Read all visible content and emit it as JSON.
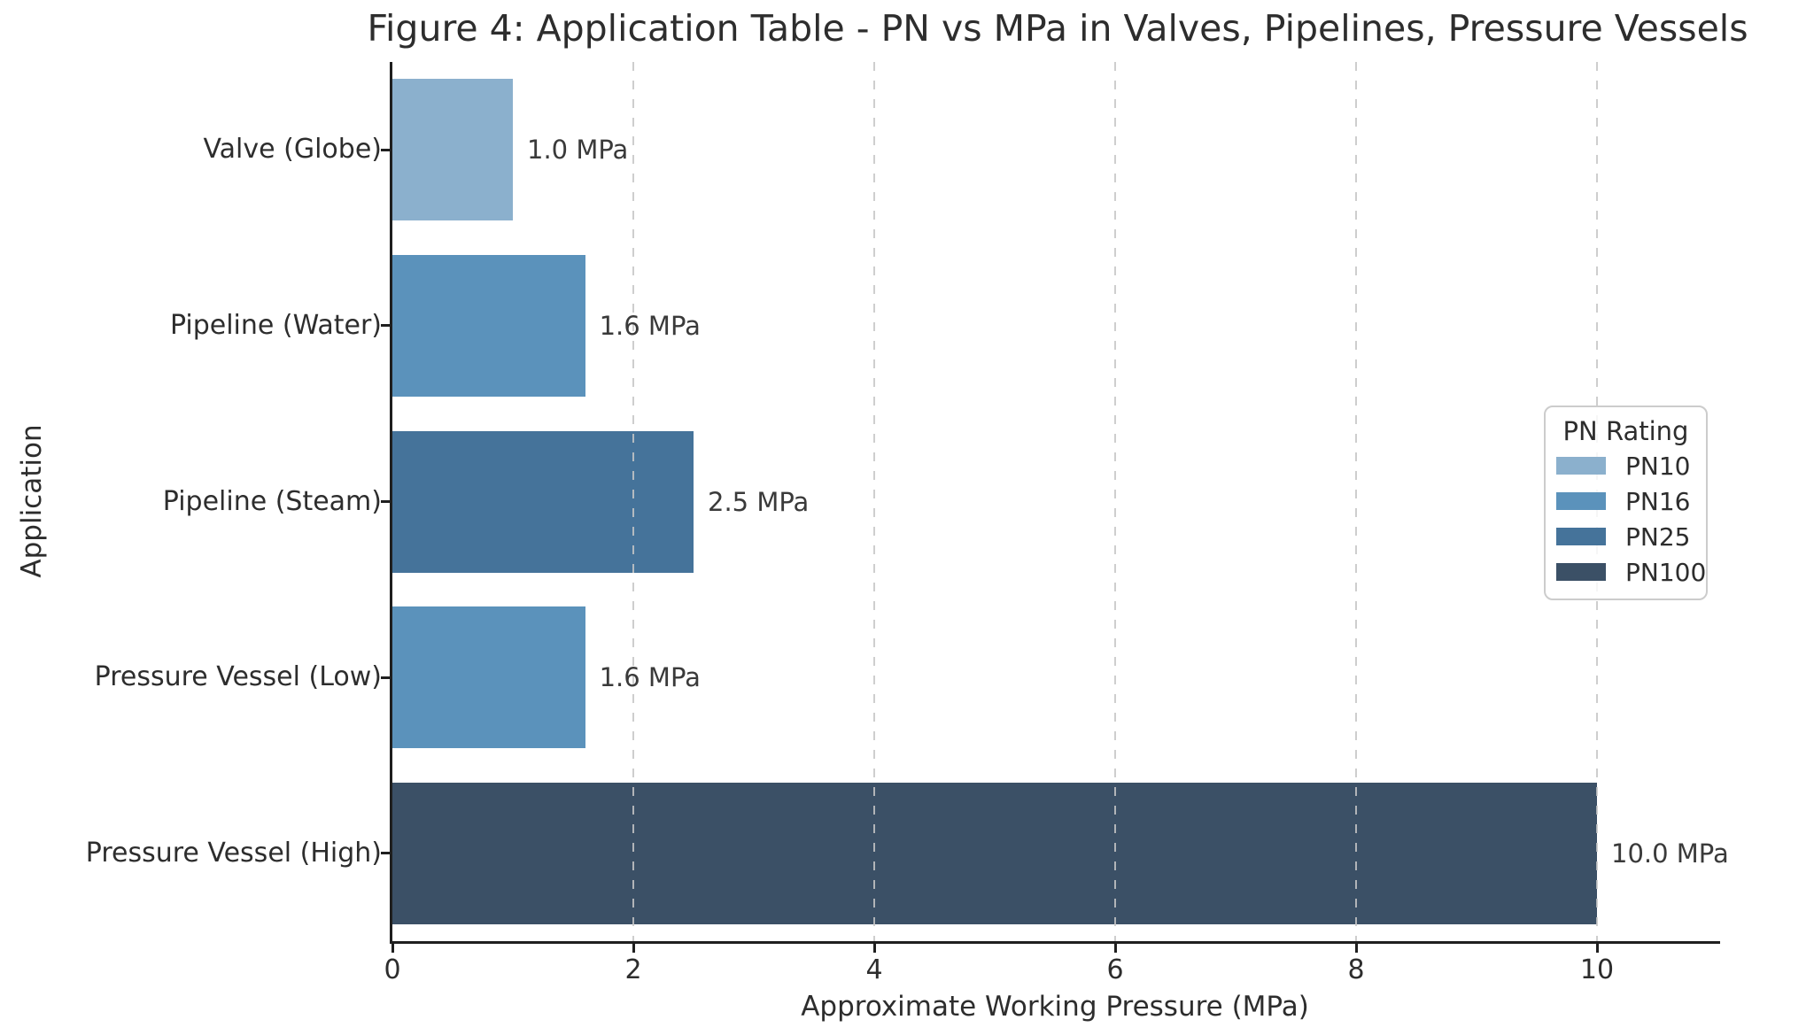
{
  "chart_data": {
    "type": "bar",
    "orientation": "horizontal",
    "title": "Figure 4: Application Table - PN vs MPa in Valves, Pipelines, Pressure Vessels",
    "xlabel": "Approximate Working Pressure (MPa)",
    "ylabel": "Application",
    "xlim": [
      0,
      11
    ],
    "xticks": [
      0,
      2,
      4,
      6,
      8,
      10
    ],
    "grid": "vertical-dashed",
    "legend_position": "center-right",
    "categories": [
      "Valve (Globe)",
      "Pipeline (Water)",
      "Pipeline (Steam)",
      "Pressure Vessel (Low)",
      "Pressure Vessel (High)"
    ],
    "bars": [
      {
        "category": "Valve (Globe)",
        "value": 1.0,
        "value_label": "1.0 MPa",
        "pn_rating": "PN10",
        "color": "#8bb0cd"
      },
      {
        "category": "Pipeline (Water)",
        "value": 1.6,
        "value_label": "1.6 MPa",
        "pn_rating": "PN16",
        "color": "#5b92bb"
      },
      {
        "category": "Pipeline (Steam)",
        "value": 2.5,
        "value_label": "2.5 MPa",
        "pn_rating": "PN25",
        "color": "#45739a"
      },
      {
        "category": "Pressure Vessel (Low)",
        "value": 1.6,
        "value_label": "1.6 MPa",
        "pn_rating": "PN16",
        "color": "#5b92bb"
      },
      {
        "category": "Pressure Vessel (High)",
        "value": 10.0,
        "value_label": "10.0 MPa",
        "pn_rating": "PN100",
        "color": "#3b5066"
      }
    ],
    "legend": {
      "title": "PN Rating",
      "entries": [
        {
          "label": "PN10",
          "color": "#8bb0cd"
        },
        {
          "label": "PN16",
          "color": "#5b92bb"
        },
        {
          "label": "PN25",
          "color": "#45739a"
        },
        {
          "label": "PN100",
          "color": "#3b5066"
        }
      ]
    },
    "colors": {
      "background": "#ffffff",
      "spine": "#1f1f1f",
      "grid": "#c6c6c6",
      "text": "#2d2d2d"
    }
  }
}
